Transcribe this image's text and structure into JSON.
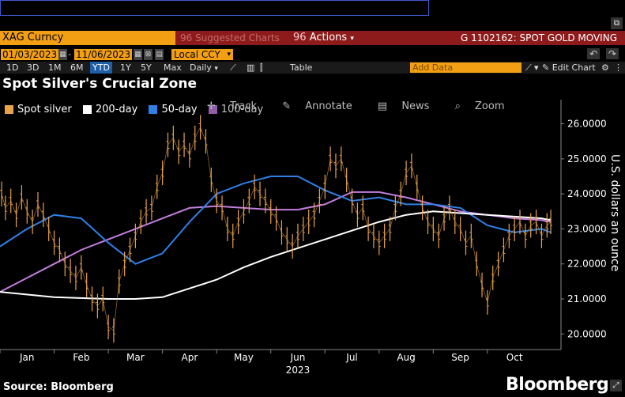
{
  "header": {
    "ticker": "XAG Curncy",
    "suggested": "96 Suggested Charts",
    "actions_num": "96",
    "actions_label": "Actions",
    "news_headline": "G 1102162: SPOT GOLD MOVING"
  },
  "controls": {
    "start_date": "01/03/2023",
    "end_date": "11/06/2023",
    "currency": "Local CCY",
    "ranges": [
      "1D",
      "3D",
      "1M",
      "6M",
      "YTD",
      "1Y",
      "5Y",
      "Max"
    ],
    "active_range": "YTD",
    "frequency": "Daily",
    "table_label": "Table",
    "add_data_placeholder": "Add Data",
    "edit_chart_label": "Edit Chart"
  },
  "chart_title": "Spot Silver's Crucial Zone",
  "overlay_tools": [
    "Track",
    "Annotate",
    "News",
    "Zoom"
  ],
  "footer": {
    "source": "Source: Bloomberg",
    "brand": "Bloomberg"
  },
  "colors": {
    "spot": "#e8a24a",
    "ma200": "#ffffff",
    "ma50": "#2f7fe6",
    "ma100": "#c27ddf",
    "accent": "#f39f14"
  },
  "chart_data": {
    "type": "line",
    "title": "Spot Silver's Crucial Zone",
    "ylabel": "U.S. dollars an ounce",
    "xlabel": "2023",
    "ylim": [
      19.6,
      26.6
    ],
    "yticks": [
      "20.0000",
      "21.0000",
      "22.0000",
      "23.0000",
      "24.0000",
      "25.0000",
      "26.0000"
    ],
    "xticks": [
      "Jan",
      "Feb",
      "Mar",
      "Apr",
      "May",
      "Jun",
      "Jul",
      "Aug",
      "Sep",
      "Oct"
    ],
    "xticks_month_index": [
      0.5,
      1.5,
      2.5,
      3.5,
      4.5,
      5.5,
      6.5,
      7.5,
      8.5,
      9.5
    ],
    "legend_position": "top-left",
    "series": [
      {
        "name": "Spot silver",
        "style": "ohlc-bars",
        "x_month": [
          0.03,
          0.1,
          0.2,
          0.3,
          0.4,
          0.5,
          0.6,
          0.7,
          0.8,
          0.9,
          1.0,
          1.1,
          1.2,
          1.3,
          1.4,
          1.5,
          1.6,
          1.7,
          1.8,
          1.9,
          2.0,
          2.1,
          2.2,
          2.3,
          2.4,
          2.5,
          2.6,
          2.7,
          2.8,
          2.9,
          3.0,
          3.1,
          3.2,
          3.3,
          3.4,
          3.5,
          3.6,
          3.7,
          3.8,
          3.9,
          4.0,
          4.1,
          4.2,
          4.3,
          4.4,
          4.5,
          4.6,
          4.7,
          4.8,
          4.9,
          5.0,
          5.1,
          5.2,
          5.3,
          5.4,
          5.5,
          5.6,
          5.7,
          5.8,
          5.9,
          6.0,
          6.1,
          6.2,
          6.3,
          6.4,
          6.5,
          6.6,
          6.7,
          6.8,
          6.9,
          7.0,
          7.1,
          7.2,
          7.3,
          7.4,
          7.5,
          7.6,
          7.7,
          7.8,
          7.9,
          8.0,
          8.1,
          8.2,
          8.3,
          8.4,
          8.5,
          8.6,
          8.7,
          8.8,
          8.9,
          9.0,
          9.1,
          9.2,
          9.3,
          9.4,
          9.5,
          9.6,
          9.7,
          9.8,
          9.9,
          10.0,
          10.1,
          10.17
        ],
        "values": [
          24.0,
          23.6,
          23.8,
          23.4,
          23.9,
          23.5,
          23.2,
          23.7,
          23.4,
          23.0,
          22.6,
          22.4,
          22.0,
          21.8,
          21.6,
          21.9,
          21.4,
          21.0,
          20.8,
          21.0,
          20.2,
          20.1,
          21.5,
          22.0,
          22.4,
          22.8,
          23.2,
          23.5,
          23.6,
          24.2,
          24.6,
          25.4,
          25.6,
          25.2,
          25.4,
          25.1,
          25.6,
          25.9,
          25.5,
          24.4,
          23.8,
          23.6,
          23.0,
          22.8,
          23.2,
          23.5,
          23.8,
          24.2,
          24.0,
          23.8,
          23.5,
          23.3,
          22.9,
          22.7,
          22.5,
          22.8,
          23.0,
          23.2,
          23.4,
          23.8,
          24.2,
          25.0,
          24.8,
          25.0,
          24.4,
          23.8,
          23.4,
          23.6,
          23.0,
          22.8,
          22.6,
          22.8,
          23.0,
          23.6,
          24.0,
          24.6,
          24.8,
          24.2,
          23.6,
          23.2,
          23.0,
          22.8,
          23.3,
          23.6,
          23.2,
          23.0,
          22.6,
          22.8,
          22.0,
          21.4,
          20.9,
          21.6,
          22.0,
          22.4,
          22.8,
          23.0,
          23.2,
          22.8,
          23.1,
          23.2,
          22.8,
          23.1,
          23.2
        ]
      },
      {
        "name": "200-day",
        "style": "line",
        "x_month": [
          0,
          1,
          2,
          2.5,
          3,
          3.5,
          4,
          4.5,
          5,
          5.5,
          6,
          6.5,
          7,
          7.5,
          8,
          8.5,
          9,
          9.5,
          10,
          10.17
        ],
        "values": [
          21.2,
          21.05,
          21.0,
          21.0,
          21.05,
          21.3,
          21.55,
          21.9,
          22.2,
          22.45,
          22.7,
          22.95,
          23.2,
          23.4,
          23.5,
          23.45,
          23.4,
          23.35,
          23.3,
          23.25
        ]
      },
      {
        "name": "50-day",
        "style": "line",
        "x_month": [
          0,
          0.5,
          1,
          1.5,
          2,
          2.5,
          3,
          3.5,
          4,
          4.5,
          5,
          5.5,
          6,
          6.5,
          7,
          7.5,
          8,
          8.5,
          9,
          9.5,
          10,
          10.17
        ],
        "values": [
          22.5,
          23.0,
          23.4,
          23.3,
          22.6,
          22.0,
          22.3,
          23.2,
          24.0,
          24.3,
          24.5,
          24.5,
          24.1,
          23.8,
          23.9,
          23.7,
          23.7,
          23.6,
          23.1,
          22.9,
          23.0,
          22.9
        ]
      },
      {
        "name": "100-day",
        "style": "line",
        "x_month": [
          0,
          0.5,
          1,
          1.5,
          2,
          2.5,
          3,
          3.5,
          4,
          4.5,
          5,
          5.5,
          6,
          6.5,
          7,
          7.5,
          8,
          8.5,
          9,
          9.5,
          10,
          10.17
        ],
        "values": [
          21.2,
          21.6,
          22.0,
          22.4,
          22.7,
          23.0,
          23.3,
          23.6,
          23.65,
          23.6,
          23.55,
          23.55,
          23.7,
          24.05,
          24.05,
          23.9,
          23.7,
          23.5,
          23.4,
          23.3,
          23.25,
          23.2
        ]
      }
    ]
  }
}
